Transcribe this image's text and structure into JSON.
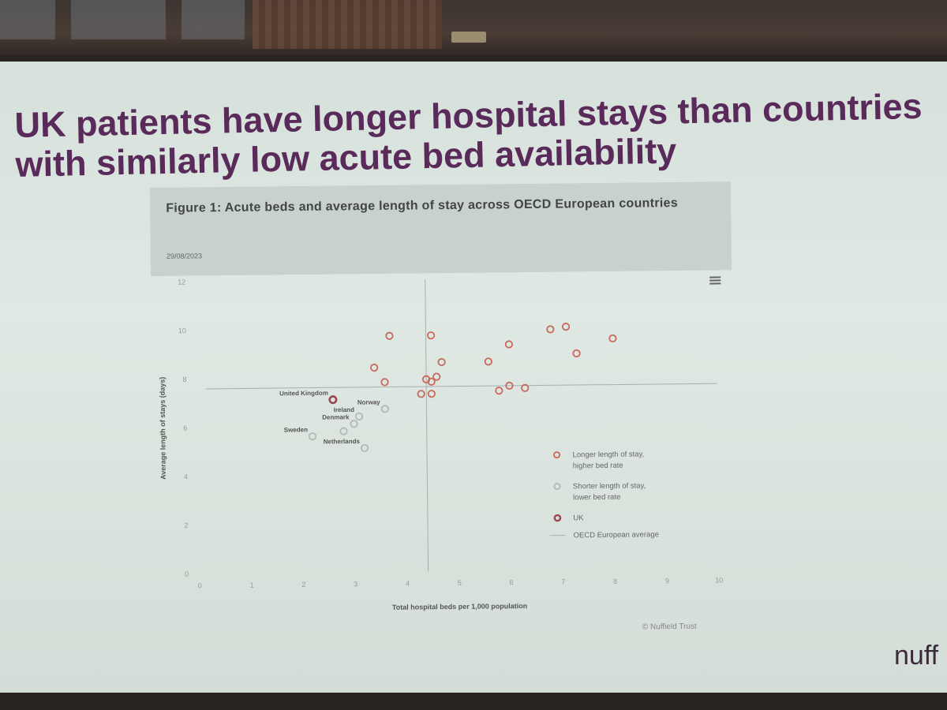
{
  "slide": {
    "title_line1": "UK patients have longer hospital stays than countries",
    "title_line2": "with similarly low acute bed availability",
    "brand": "nuff"
  },
  "figure": {
    "title": "Figure 1: Acute beds and average length of stay across OECD European countries",
    "date": "29/08/2023",
    "credit": "© Nuffield Trust",
    "menu_icon": "hamburger-menu-icon"
  },
  "colors": {
    "longer": "#c8685a",
    "shorter": "#b4b8b8",
    "uk": "#9a4650",
    "average": "#a9b0b0",
    "title": "#5a2a5a"
  },
  "chart_data": {
    "type": "scatter",
    "title": "Figure 1: Acute beds and average length of stay across OECD European countries",
    "xlabel": "Total hospital beds per 1,000 population",
    "ylabel": "Average length of stays (days)",
    "xlim": [
      0,
      10
    ],
    "ylim": [
      0,
      12
    ],
    "xticks": [
      "0",
      "1",
      "2",
      "3",
      "4",
      "5",
      "6",
      "7",
      "8",
      "9",
      "10"
    ],
    "yticks": [
      "0",
      "2",
      "4",
      "6",
      "8",
      "10",
      "12"
    ],
    "averages": {
      "x": 4.4,
      "y": 7.6
    },
    "legend_position": "right",
    "legend": [
      {
        "key": "longer",
        "label_line1": "Longer length of stay,",
        "label_line2": "higher bed rate"
      },
      {
        "key": "shorter",
        "label_line1": "Shorter length of stay,",
        "label_line2": "lower bed rate"
      },
      {
        "key": "uk",
        "label_line1": "UK",
        "label_line2": ""
      },
      {
        "key": "average",
        "label_line1": "OECD European average",
        "label_line2": ""
      }
    ],
    "series": [
      {
        "key": "longer",
        "points": [
          {
            "x": 3.7,
            "y": 9.7
          },
          {
            "x": 4.5,
            "y": 9.7
          },
          {
            "x": 6.0,
            "y": 9.3
          },
          {
            "x": 6.8,
            "y": 9.9
          },
          {
            "x": 7.1,
            "y": 10.0
          },
          {
            "x": 8.0,
            "y": 9.5
          },
          {
            "x": 7.3,
            "y": 8.9
          },
          {
            "x": 5.6,
            "y": 8.6
          },
          {
            "x": 3.4,
            "y": 8.4
          },
          {
            "x": 4.7,
            "y": 8.6
          },
          {
            "x": 4.6,
            "y": 8.0
          },
          {
            "x": 3.6,
            "y": 7.8
          },
          {
            "x": 4.4,
            "y": 7.9
          },
          {
            "x": 4.5,
            "y": 7.8
          },
          {
            "x": 4.3,
            "y": 7.3
          },
          {
            "x": 4.5,
            "y": 7.3
          },
          {
            "x": 5.8,
            "y": 7.4
          },
          {
            "x": 6.0,
            "y": 7.6
          },
          {
            "x": 6.3,
            "y": 7.5
          }
        ]
      },
      {
        "key": "shorter",
        "points": [
          {
            "x": 3.6,
            "y": 6.7,
            "label": "Norway"
          },
          {
            "x": 3.1,
            "y": 6.4,
            "label": "Ireland"
          },
          {
            "x": 3.0,
            "y": 6.1,
            "label": "Denmark"
          },
          {
            "x": 2.8,
            "y": 5.8,
            "label": ""
          },
          {
            "x": 2.2,
            "y": 5.6,
            "label": "Sweden"
          },
          {
            "x": 3.2,
            "y": 5.1,
            "label": "Netherlands"
          }
        ]
      },
      {
        "key": "uk",
        "points": [
          {
            "x": 2.6,
            "y": 7.1,
            "label": "United Kingdom"
          }
        ]
      }
    ]
  }
}
